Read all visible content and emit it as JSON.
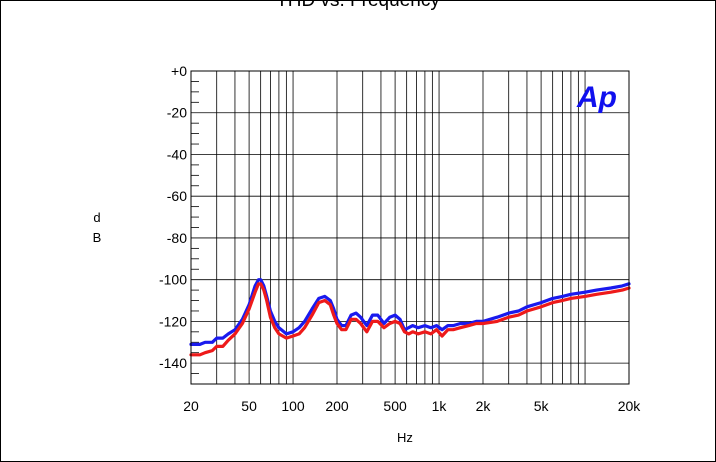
{
  "chart_data": {
    "type": "line",
    "title": "THD vs. Frequency",
    "xlabel": "Hz",
    "ylabel": "dB",
    "ylabel_chars": [
      "d",
      "B"
    ],
    "x_scale": "log",
    "xlim": [
      20,
      20000
    ],
    "ylim": [
      -150,
      0
    ],
    "grid": true,
    "logo": "Ap",
    "y_ticks": [
      {
        "value": 0,
        "label": "+0"
      },
      {
        "value": -20,
        "label": "-20"
      },
      {
        "value": -40,
        "label": "-40"
      },
      {
        "value": -60,
        "label": "-60"
      },
      {
        "value": -80,
        "label": "-80"
      },
      {
        "value": -100,
        "label": "-100"
      },
      {
        "value": -120,
        "label": "-120"
      },
      {
        "value": -140,
        "label": "-140"
      }
    ],
    "x_ticks": [
      {
        "value": 20,
        "label": "20"
      },
      {
        "value": 50,
        "label": "50"
      },
      {
        "value": 100,
        "label": "100"
      },
      {
        "value": 200,
        "label": "200"
      },
      {
        "value": 500,
        "label": "500"
      },
      {
        "value": 1000,
        "label": "1k"
      },
      {
        "value": 2000,
        "label": "2k"
      },
      {
        "value": 5000,
        "label": "5k"
      },
      {
        "value": 20000,
        "label": "20k"
      }
    ],
    "series": [
      {
        "color": "#1a1aee",
        "x": [
          20,
          23,
          25,
          28,
          30,
          33,
          36,
          40,
          45,
          50,
          55,
          58,
          60,
          63,
          66,
          70,
          75,
          80,
          90,
          100,
          110,
          120,
          135,
          150,
          165,
          180,
          190,
          200,
          215,
          230,
          250,
          270,
          290,
          320,
          350,
          380,
          420,
          460,
          500,
          540,
          580,
          620,
          660,
          720,
          800,
          880,
          960,
          1050,
          1150,
          1250,
          1400,
          1600,
          1800,
          2000,
          2500,
          3000,
          3500,
          4000,
          5000,
          6000,
          7000,
          8000,
          10000,
          12000,
          15000,
          18000,
          20000
        ],
        "y": [
          -131,
          -131,
          -130,
          -130,
          -128,
          -128,
          -126,
          -124,
          -119,
          -112,
          -103,
          -100,
          -100,
          -103,
          -108,
          -115,
          -120,
          -123,
          -126,
          -125,
          -123,
          -120,
          -114,
          -109,
          -108,
          -110,
          -114,
          -119,
          -122,
          -122,
          -117,
          -116,
          -118,
          -122,
          -117,
          -117,
          -121,
          -118,
          -117,
          -119,
          -124,
          -123,
          -122,
          -123,
          -122,
          -123,
          -122,
          -124,
          -122,
          -122,
          -121,
          -121,
          -120,
          -120,
          -118,
          -116,
          -115,
          -113,
          -111,
          -109,
          -108,
          -107,
          -106,
          -105,
          -104,
          -103,
          -102
        ]
      },
      {
        "color": "#ee1a1a",
        "x": [
          20,
          23,
          25,
          28,
          30,
          33,
          36,
          40,
          45,
          50,
          55,
          58,
          60,
          63,
          66,
          70,
          75,
          80,
          90,
          100,
          110,
          120,
          135,
          150,
          165,
          180,
          190,
          200,
          215,
          230,
          250,
          270,
          290,
          320,
          350,
          380,
          420,
          460,
          500,
          540,
          580,
          620,
          660,
          720,
          800,
          880,
          960,
          1050,
          1150,
          1250,
          1400,
          1600,
          1800,
          2000,
          2500,
          3000,
          3500,
          4000,
          5000,
          6000,
          7000,
          8000,
          10000,
          12000,
          15000,
          18000,
          20000
        ],
        "y": [
          -136,
          -136,
          -135,
          -134,
          -132,
          -132,
          -129,
          -126,
          -121,
          -114,
          -106,
          -102,
          -102,
          -105,
          -110,
          -118,
          -123,
          -126,
          -128,
          -127,
          -126,
          -123,
          -117,
          -111,
          -110,
          -112,
          -117,
          -121,
          -124,
          -124,
          -119,
          -119,
          -121,
          -125,
          -120,
          -120,
          -123,
          -121,
          -120,
          -121,
          -125,
          -126,
          -125,
          -126,
          -125,
          -126,
          -124,
          -127,
          -124,
          -124,
          -123,
          -122,
          -121,
          -121,
          -120,
          -118,
          -117,
          -115,
          -113,
          -111,
          -110,
          -109,
          -108,
          -107,
          -106,
          -105,
          -104
        ]
      }
    ]
  }
}
